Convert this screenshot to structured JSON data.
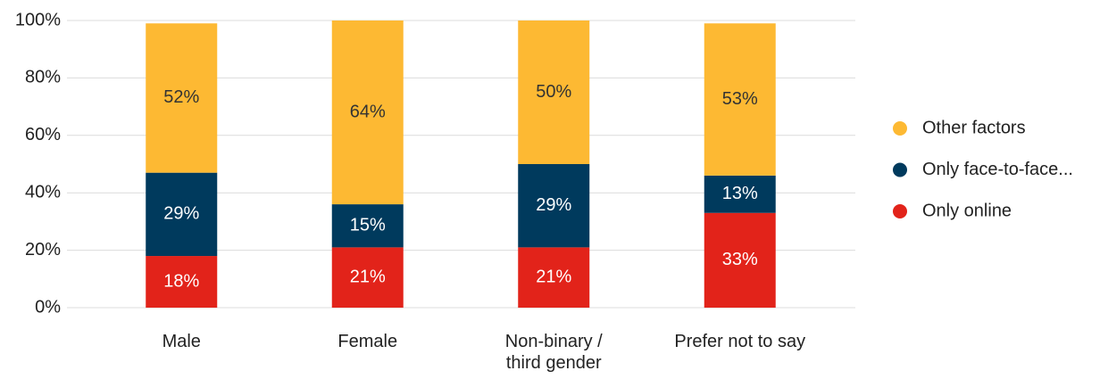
{
  "chart_data": {
    "type": "stacked-bar",
    "categories": [
      "Male",
      "Female",
      "Non-binary / third gender",
      "Prefer not to say"
    ],
    "series": [
      {
        "name": "Only online",
        "color": "#e2231a",
        "values": [
          18,
          21,
          21,
          33
        ],
        "value_labels": [
          "18%",
          "21%",
          "21%",
          "33%"
        ]
      },
      {
        "name": "Only face-to-face...",
        "color": "#003a5d",
        "values": [
          29,
          15,
          29,
          13
        ],
        "value_labels": [
          "29%",
          "15%",
          "29%",
          "13%"
        ]
      },
      {
        "name": "Other factors",
        "color": "#fdb933",
        "values": [
          52,
          64,
          50,
          53
        ],
        "value_labels": [
          "52%",
          "64%",
          "50%",
          "53%"
        ]
      }
    ],
    "ylim": [
      0,
      100
    ],
    "yticks": [
      {
        "value": 0,
        "label": "0%"
      },
      {
        "value": 20,
        "label": "20%"
      },
      {
        "value": 40,
        "label": "40%"
      },
      {
        "value": 60,
        "label": "60%"
      },
      {
        "value": 80,
        "label": "80%"
      },
      {
        "value": 100,
        "label": "100%"
      }
    ],
    "grid": true,
    "legend": "right"
  }
}
